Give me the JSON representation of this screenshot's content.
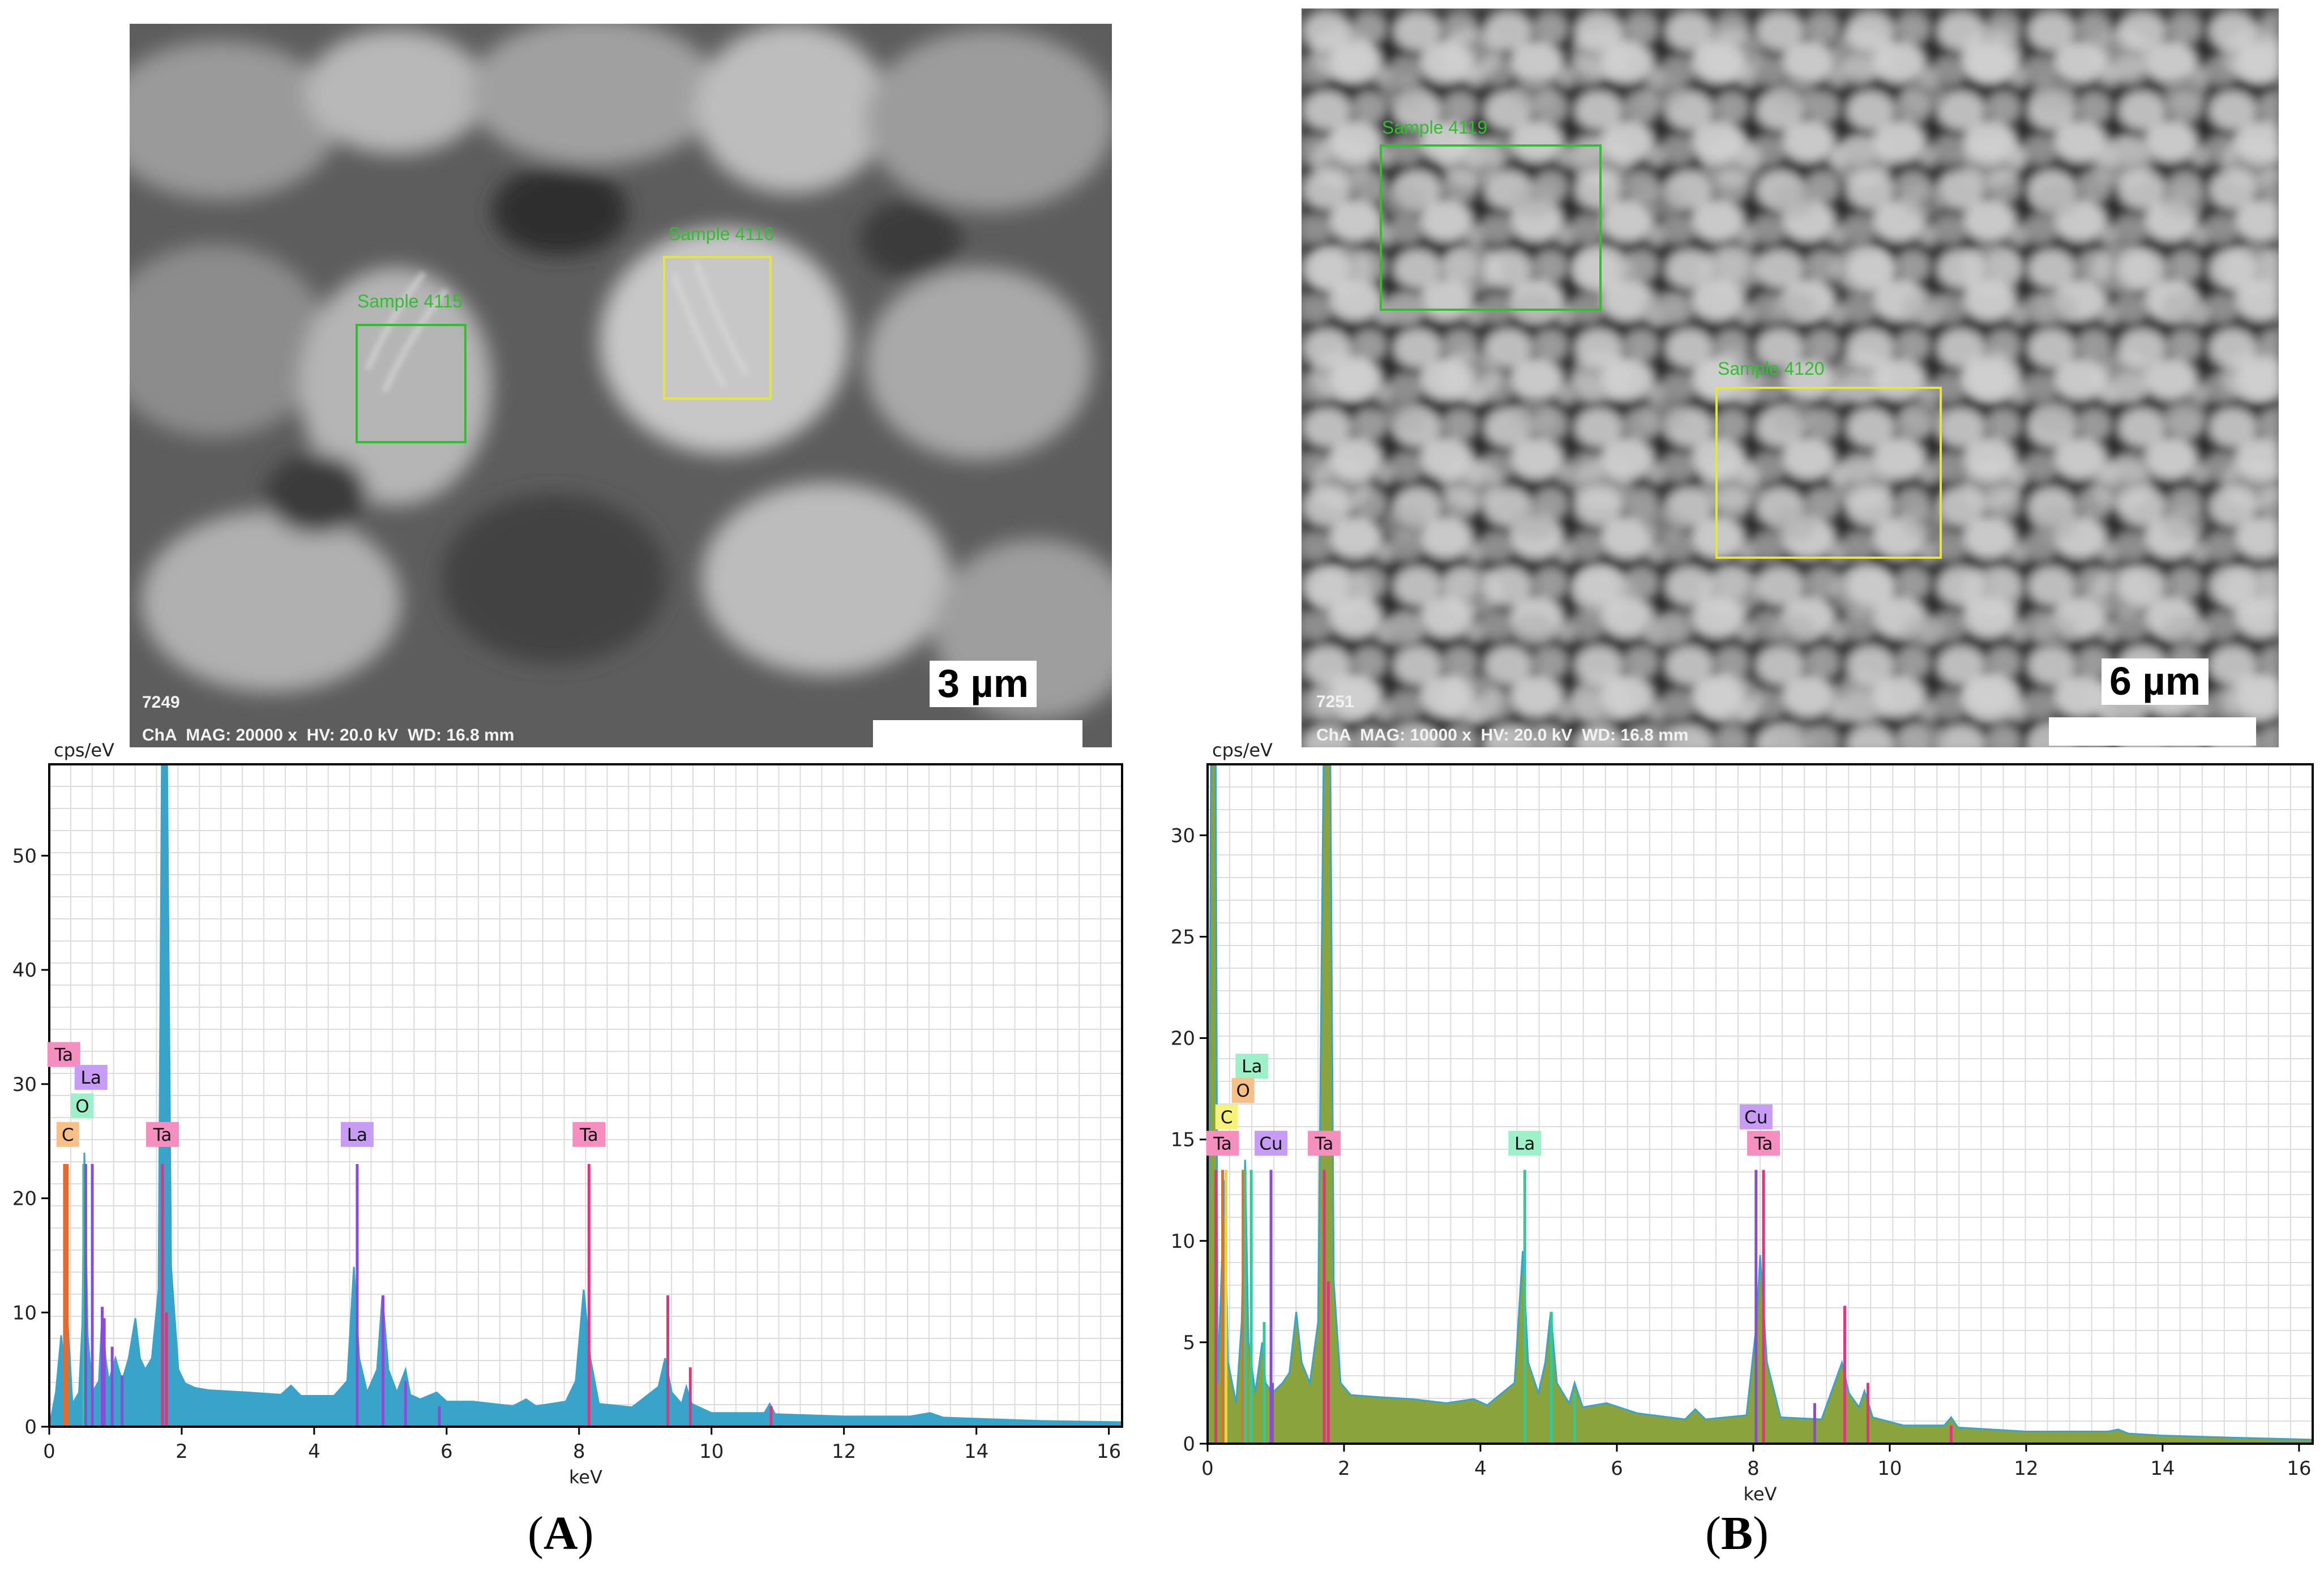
{
  "panels": [
    {
      "id": "A",
      "label_open": "(",
      "label_letter": "A",
      "label_close": ")",
      "sem": {
        "image_id": "7249",
        "info": "ChA  MAG: 20000 x  HV: 20.0 kV  WD: 16.8 mm",
        "scale_label": "3 µm",
        "rois": [
          {
            "label": "Sample 4115",
            "color": "#2fbf2f"
          },
          {
            "label": "Sample 4116",
            "color": "#e6e63a"
          }
        ]
      },
      "chart_data": {
        "type": "line",
        "ylabel": "cps/eV",
        "xlabel": "keV",
        "xlim": [
          0,
          16.2
        ],
        "ylim": [
          0,
          58
        ],
        "x_ticks": [
          0,
          2,
          4,
          6,
          8,
          10,
          12,
          14,
          16
        ],
        "y_ticks": [
          0,
          10,
          20,
          30,
          40,
          50
        ],
        "grid": true,
        "fill_color": "#3aa3c9",
        "spectrum": [
          [
            0,
            0
          ],
          [
            0.1,
            3
          ],
          [
            0.18,
            8
          ],
          [
            0.25,
            4
          ],
          [
            0.28,
            9
          ],
          [
            0.35,
            2
          ],
          [
            0.45,
            3
          ],
          [
            0.5,
            9
          ],
          [
            0.53,
            24
          ],
          [
            0.58,
            8
          ],
          [
            0.65,
            3
          ],
          [
            0.75,
            4
          ],
          [
            0.8,
            10
          ],
          [
            0.85,
            6
          ],
          [
            0.9,
            4
          ],
          [
            1.0,
            6
          ],
          [
            1.1,
            4
          ],
          [
            1.2,
            6
          ],
          [
            1.3,
            9.5
          ],
          [
            1.37,
            6
          ],
          [
            1.45,
            5
          ],
          [
            1.55,
            6
          ],
          [
            1.65,
            12
          ],
          [
            1.7,
            58
          ],
          [
            1.78,
            58
          ],
          [
            1.84,
            14
          ],
          [
            1.95,
            5
          ],
          [
            2.05,
            3.8
          ],
          [
            2.2,
            3.4
          ],
          [
            2.4,
            3.2
          ],
          [
            3.0,
            3
          ],
          [
            3.5,
            2.8
          ],
          [
            3.65,
            3.6
          ],
          [
            3.8,
            2.7
          ],
          [
            4.3,
            2.7
          ],
          [
            4.5,
            4
          ],
          [
            4.6,
            14
          ],
          [
            4.68,
            6
          ],
          [
            4.8,
            3
          ],
          [
            4.95,
            5
          ],
          [
            5.03,
            11.5
          ],
          [
            5.12,
            5
          ],
          [
            5.25,
            3
          ],
          [
            5.38,
            5
          ],
          [
            5.45,
            2.8
          ],
          [
            5.6,
            2.4
          ],
          [
            5.85,
            3
          ],
          [
            6.0,
            2.2
          ],
          [
            6.4,
            2.2
          ],
          [
            7.0,
            1.8
          ],
          [
            7.2,
            2.4
          ],
          [
            7.35,
            1.8
          ],
          [
            7.8,
            2.2
          ],
          [
            7.95,
            4
          ],
          [
            8.07,
            12
          ],
          [
            8.17,
            6
          ],
          [
            8.3,
            2
          ],
          [
            8.8,
            1.7
          ],
          [
            9.2,
            3.5
          ],
          [
            9.3,
            6
          ],
          [
            9.4,
            3
          ],
          [
            9.55,
            2
          ],
          [
            9.62,
            3.5
          ],
          [
            9.7,
            2
          ],
          [
            10.0,
            1.2
          ],
          [
            10.8,
            1.2
          ],
          [
            10.88,
            2
          ],
          [
            10.96,
            1.1
          ],
          [
            11.5,
            1
          ],
          [
            12,
            0.9
          ],
          [
            13.0,
            0.9
          ],
          [
            13.3,
            1.2
          ],
          [
            13.5,
            0.8
          ],
          [
            14,
            0.7
          ],
          [
            15,
            0.5
          ],
          [
            16.2,
            0.4
          ]
        ],
        "lines": [
          {
            "x": 0.23,
            "y": 23,
            "color": "#e46b2d"
          },
          {
            "x": 0.27,
            "y": 23,
            "color": "#e46b2d"
          },
          {
            "x": 0.52,
            "y": 23,
            "color": "#2fc99a"
          },
          {
            "x": 0.55,
            "y": 23,
            "color": "#8a4bd6"
          },
          {
            "x": 0.65,
            "y": 23,
            "color": "#8a4bd6"
          },
          {
            "x": 0.8,
            "y": 10.5,
            "color": "#8a4bd6"
          },
          {
            "x": 0.83,
            "y": 9.5,
            "color": "#8a4bd6"
          },
          {
            "x": 0.95,
            "y": 7,
            "color": "#8a4bd6"
          },
          {
            "x": 1.1,
            "y": 4.5,
            "color": "#8a4bd6"
          },
          {
            "x": 1.71,
            "y": 23,
            "color": "#e0357e"
          },
          {
            "x": 1.77,
            "y": 10,
            "color": "#e0357e"
          },
          {
            "x": 4.65,
            "y": 23,
            "color": "#8a4bd6"
          },
          {
            "x": 5.04,
            "y": 11.5,
            "color": "#8a4bd6"
          },
          {
            "x": 5.38,
            "y": 4,
            "color": "#8a4bd6"
          },
          {
            "x": 5.89,
            "y": 1.8,
            "color": "#8a4bd6"
          },
          {
            "x": 8.15,
            "y": 23,
            "color": "#e0357e"
          },
          {
            "x": 9.34,
            "y": 11.5,
            "color": "#e0357e"
          },
          {
            "x": 9.68,
            "y": 5.2,
            "color": "#e0357e"
          },
          {
            "x": 10.9,
            "y": 1.8,
            "color": "#e0357e"
          }
        ],
        "annotations": [
          {
            "text": "Ta",
            "x": 0.22,
            "y": 31.5,
            "color": "#f48fc0"
          },
          {
            "text": "La",
            "x": 0.63,
            "y": 29.5,
            "color": "#c69cf4"
          },
          {
            "text": "O",
            "x": 0.5,
            "y": 27,
            "color": "#9ef0c8"
          },
          {
            "text": "C",
            "x": 0.28,
            "y": 24.5,
            "color": "#f7c089"
          },
          {
            "text": "Ta",
            "x": 1.71,
            "y": 24.5,
            "color": "#f48fc0"
          },
          {
            "text": "La",
            "x": 4.65,
            "y": 24.5,
            "color": "#c69cf4"
          },
          {
            "text": "Ta",
            "x": 8.15,
            "y": 24.5,
            "color": "#f48fc0"
          }
        ]
      }
    },
    {
      "id": "B",
      "label_open": "(",
      "label_letter": "B",
      "label_close": ")",
      "sem": {
        "image_id": "7251",
        "info": "ChA  MAG: 10000 x  HV: 20.0 kV  WD: 16.8 mm",
        "scale_label": "6 µm",
        "rois": [
          {
            "label": "Sample 4119",
            "color": "#2fbf2f"
          },
          {
            "label": "Sample 4120",
            "color": "#e6e63a"
          }
        ]
      },
      "chart_data": {
        "type": "line",
        "ylabel": "cps/eV",
        "xlabel": "keV",
        "xlim": [
          0,
          16.2
        ],
        "ylim": [
          0,
          33.5
        ],
        "x_ticks": [
          0,
          2,
          4,
          6,
          8,
          10,
          12,
          14,
          16
        ],
        "y_ticks": [
          0,
          5,
          10,
          15,
          20,
          25,
          30
        ],
        "grid": true,
        "fill_color": "#8aa33c",
        "outline_color": "#3aa3c9",
        "spectrum": [
          [
            0,
            0
          ],
          [
            0.05,
            33.5
          ],
          [
            0.12,
            33.5
          ],
          [
            0.15,
            3
          ],
          [
            0.25,
            13
          ],
          [
            0.3,
            4
          ],
          [
            0.42,
            2
          ],
          [
            0.5,
            6
          ],
          [
            0.55,
            14
          ],
          [
            0.6,
            5
          ],
          [
            0.7,
            2.5
          ],
          [
            0.8,
            5
          ],
          [
            0.85,
            3
          ],
          [
            0.95,
            2.5
          ],
          [
            1.1,
            3
          ],
          [
            1.2,
            3.5
          ],
          [
            1.3,
            6.5
          ],
          [
            1.38,
            4
          ],
          [
            1.5,
            3
          ],
          [
            1.62,
            6
          ],
          [
            1.7,
            33.5
          ],
          [
            1.8,
            33.5
          ],
          [
            1.85,
            8
          ],
          [
            1.95,
            3
          ],
          [
            2.1,
            2.4
          ],
          [
            2.5,
            2.3
          ],
          [
            3,
            2.2
          ],
          [
            3.5,
            2
          ],
          [
            3.9,
            2.2
          ],
          [
            4.1,
            1.9
          ],
          [
            4.5,
            3
          ],
          [
            4.62,
            9.5
          ],
          [
            4.7,
            4
          ],
          [
            4.85,
            2.5
          ],
          [
            4.95,
            4
          ],
          [
            5.03,
            6.5
          ],
          [
            5.12,
            3
          ],
          [
            5.3,
            2
          ],
          [
            5.38,
            3
          ],
          [
            5.5,
            1.8
          ],
          [
            5.85,
            2
          ],
          [
            6.3,
            1.5
          ],
          [
            7.0,
            1.2
          ],
          [
            7.15,
            1.7
          ],
          [
            7.3,
            1.2
          ],
          [
            7.9,
            1.4
          ],
          [
            8.05,
            6
          ],
          [
            8.1,
            9.3
          ],
          [
            8.2,
            4
          ],
          [
            8.4,
            1.3
          ],
          [
            9.0,
            1.2
          ],
          [
            9.3,
            4
          ],
          [
            9.4,
            2.5
          ],
          [
            9.55,
            1.8
          ],
          [
            9.63,
            2.6
          ],
          [
            9.75,
            1.3
          ],
          [
            10.2,
            0.9
          ],
          [
            10.8,
            0.9
          ],
          [
            10.9,
            1.3
          ],
          [
            11,
            0.8
          ],
          [
            12,
            0.6
          ],
          [
            13.2,
            0.6
          ],
          [
            13.35,
            0.7
          ],
          [
            13.5,
            0.5
          ],
          [
            14,
            0.4
          ],
          [
            15,
            0.3
          ],
          [
            16.2,
            0.2
          ]
        ],
        "lines": [
          {
            "x": 0.12,
            "y": 13.5,
            "color": "#e0357e"
          },
          {
            "x": 0.22,
            "y": 13.5,
            "color": "#e46b2d"
          },
          {
            "x": 0.27,
            "y": 13.5,
            "color": "#f0d23a"
          },
          {
            "x": 0.52,
            "y": 13.5,
            "color": "#e46b2d"
          },
          {
            "x": 0.55,
            "y": 13.5,
            "color": "#2fc99a"
          },
          {
            "x": 0.64,
            "y": 13.5,
            "color": "#2fc99a"
          },
          {
            "x": 0.83,
            "y": 6,
            "color": "#2fc99a"
          },
          {
            "x": 0.93,
            "y": 13.5,
            "color": "#8a4bd6"
          },
          {
            "x": 0.95,
            "y": 3,
            "color": "#8a4bd6"
          },
          {
            "x": 1.71,
            "y": 13.5,
            "color": "#e0357e"
          },
          {
            "x": 1.77,
            "y": 8,
            "color": "#e0357e"
          },
          {
            "x": 4.65,
            "y": 13.5,
            "color": "#2fc99a"
          },
          {
            "x": 5.04,
            "y": 6.5,
            "color": "#2fc99a"
          },
          {
            "x": 5.38,
            "y": 2.5,
            "color": "#2fc99a"
          },
          {
            "x": 8.04,
            "y": 13.5,
            "color": "#8a4bd6"
          },
          {
            "x": 8.15,
            "y": 13.5,
            "color": "#e0357e"
          },
          {
            "x": 8.9,
            "y": 2,
            "color": "#8a4bd6"
          },
          {
            "x": 9.34,
            "y": 6.8,
            "color": "#e0357e"
          },
          {
            "x": 9.68,
            "y": 3,
            "color": "#e0357e"
          },
          {
            "x": 10.9,
            "y": 0.9,
            "color": "#e0357e"
          }
        ],
        "annotations": [
          {
            "text": "La",
            "x": 0.65,
            "y": 18,
            "color": "#9ef0c8"
          },
          {
            "text": "O",
            "x": 0.52,
            "y": 16.8,
            "color": "#f7c089"
          },
          {
            "text": "C",
            "x": 0.28,
            "y": 15.5,
            "color": "#f7f27a"
          },
          {
            "text": "Ta",
            "x": 0.22,
            "y": 14.2,
            "color": "#f48fc0"
          },
          {
            "text": "Cu",
            "x": 0.93,
            "y": 14.2,
            "color": "#c69cf4"
          },
          {
            "text": "Ta",
            "x": 1.71,
            "y": 14.2,
            "color": "#f48fc0"
          },
          {
            "text": "La",
            "x": 4.65,
            "y": 14.2,
            "color": "#9ef0c8"
          },
          {
            "text": "Cu",
            "x": 8.04,
            "y": 15.5,
            "color": "#c69cf4"
          },
          {
            "text": "Ta",
            "x": 8.15,
            "y": 14.2,
            "color": "#f48fc0"
          }
        ]
      }
    }
  ]
}
